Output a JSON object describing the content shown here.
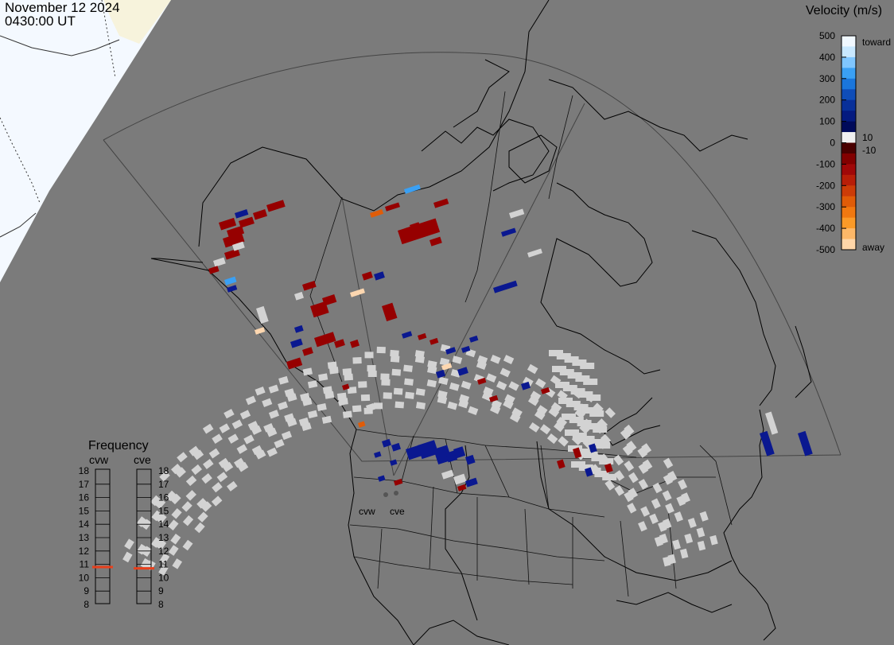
{
  "header": {
    "date": "November 12 2024",
    "time": "0430:00 UT"
  },
  "velocity_scale": {
    "title": "Velocity (m/s)",
    "ticks": [
      "500",
      "400",
      "300",
      "200",
      "100",
      "0",
      "-100",
      "-200",
      "-300",
      "-400",
      "-500"
    ],
    "label_toward": "toward",
    "label_away": "away",
    "label_pos": "10",
    "label_neg": "-10",
    "colors": [
      "#f0f8ff",
      "#c8e8ff",
      "#7fc6ff",
      "#3aa0f4",
      "#1a76dc",
      "#0f4db8",
      "#08309a",
      "#041a80",
      "#000a5a",
      "#f0f0f0",
      "#4a0000",
      "#820000",
      "#a00808",
      "#b81e08",
      "#cc3c08",
      "#e05c08",
      "#f07810",
      "#fa9a28",
      "#fdb868",
      "#ffd6a8"
    ]
  },
  "frequency": {
    "title": "Frequency",
    "radars": [
      "cvw",
      "cve"
    ],
    "ticks": [
      "18",
      "17",
      "16",
      "15",
      "14",
      "13",
      "12",
      "11",
      "10",
      "9",
      "8"
    ],
    "cvw_mhz": 10.8,
    "cve_mhz": 10.7
  },
  "stations": {
    "cvw": "cvw",
    "cve": "cve"
  },
  "colors": {
    "background": "#7b7b7b",
    "daylight": "#f4f9ff",
    "ground_scatter": "#d3d3d3",
    "indicator": "#e8401c"
  }
}
